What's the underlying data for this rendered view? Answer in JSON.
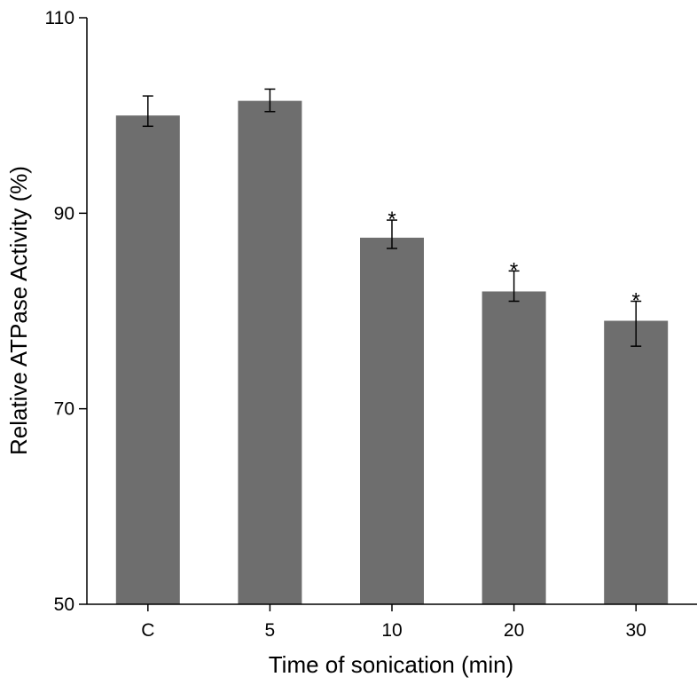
{
  "chart_data": {
    "type": "bar",
    "title": "",
    "xlabel": "Time of sonication (min)",
    "ylabel": "Relative ATPase Activity (%)",
    "categories": [
      "C",
      "5",
      "10",
      "20",
      "30"
    ],
    "values": [
      100,
      101.5,
      87.5,
      82,
      79
    ],
    "error_upper": [
      102,
      102.7,
      89.3,
      84.1,
      81
    ],
    "error_lower": [
      98.9,
      100.4,
      86.4,
      81,
      76.4
    ],
    "significance": [
      "",
      "",
      "*",
      "*",
      "*"
    ],
    "ylim": [
      50,
      110
    ],
    "yticks": [
      50,
      70,
      90,
      110
    ],
    "grid": false,
    "bar_color": "#6e6e6e"
  }
}
